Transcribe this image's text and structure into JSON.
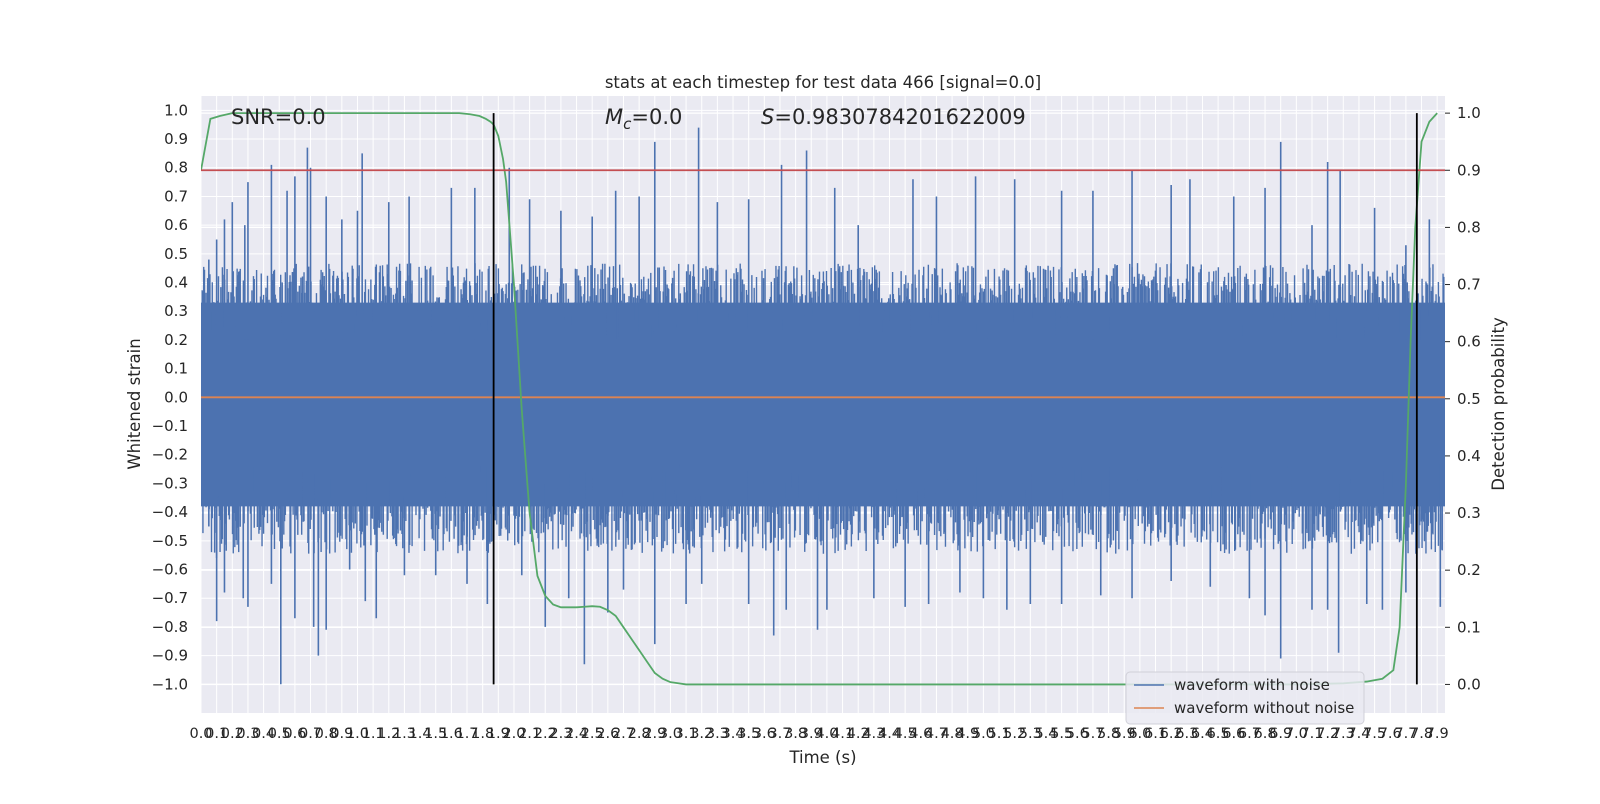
{
  "chart_data": {
    "type": "line",
    "title": "stats at each timestep for test data 466 [signal=0.0]",
    "xlabel": "Time (s)",
    "ylabel": "Whitened strain",
    "y2label": "Detection probability",
    "xlim": [
      0.0,
      7.95
    ],
    "ylim": [
      -1.1,
      1.05
    ],
    "y2lim": [
      -0.05,
      1.03
    ],
    "x_ticks": [
      0.0,
      0.1,
      0.2,
      0.3,
      0.4,
      0.5,
      0.6,
      0.7,
      0.8,
      0.9,
      1.0,
      1.1,
      1.2,
      1.3,
      1.4,
      1.5,
      1.6,
      1.7,
      1.8,
      1.9,
      2.0,
      2.1,
      2.2,
      2.3,
      2.4,
      2.5,
      2.6,
      2.7,
      2.8,
      2.9,
      3.0,
      3.1,
      3.2,
      3.3,
      3.4,
      3.5,
      3.6,
      3.7,
      3.8,
      3.9,
      4.0,
      4.1,
      4.2,
      4.3,
      4.4,
      4.5,
      4.6,
      4.7,
      4.8,
      4.9,
      5.0,
      5.1,
      5.2,
      5.3,
      5.4,
      5.5,
      5.6,
      5.7,
      5.8,
      5.9,
      6.0,
      6.1,
      6.2,
      6.3,
      6.4,
      6.5,
      6.6,
      6.7,
      6.8,
      6.9,
      7.0,
      7.1,
      7.2,
      7.3,
      7.4,
      7.5,
      7.6,
      7.7,
      7.8,
      7.9
    ],
    "y_ticks": [
      1.0,
      0.9,
      0.8,
      0.7,
      0.6,
      0.5,
      0.4,
      0.3,
      0.2,
      0.1,
      0.0,
      -0.1,
      -0.2,
      -0.3,
      -0.4,
      -0.5,
      -0.6,
      -0.7,
      -0.8,
      -0.9,
      -1.0
    ],
    "y_tick_labels": [
      "1.0",
      "0.9",
      "0.8",
      "0.7",
      "0.6",
      "0.5",
      "0.4",
      "0.3",
      "0.2",
      "0.1",
      "0.0",
      "−0.1",
      "−0.2",
      "−0.3",
      "−0.4",
      "−0.5",
      "−0.6",
      "−0.7",
      "−0.8",
      "−0.9",
      "−1.0"
    ],
    "y2_ticks": [
      1.0,
      0.9,
      0.8,
      0.7,
      0.6,
      0.5,
      0.4,
      0.3,
      0.2,
      0.1,
      0.0
    ],
    "y2_tick_labels": [
      "1.0",
      "0.9",
      "0.8",
      "0.7",
      "0.6",
      "0.5",
      "0.4",
      "0.3",
      "0.2",
      "0.1",
      "0.0"
    ],
    "grid": true,
    "legend_position": "bottom-right",
    "annotations": {
      "snr": "SNR=0.0",
      "mc_symbol": "M",
      "mc_sub": "c",
      "mc_value": "=0.0",
      "s_symbol": "S",
      "s_value": "=0.9830784201622009"
    },
    "series": [
      {
        "name": "waveform with noise",
        "color": "#4c72b0",
        "axis": "left",
        "style": "dense noise band",
        "band_upper_typical": 0.36,
        "band_lower_typical": -0.42,
        "peaks_up": [
          [
            0.05,
            0.48
          ],
          [
            0.1,
            0.55
          ],
          [
            0.15,
            0.62
          ],
          [
            0.2,
            0.68
          ],
          [
            0.28,
            0.6
          ],
          [
            0.3,
            0.75
          ],
          [
            0.45,
            0.81
          ],
          [
            0.55,
            0.72
          ],
          [
            0.6,
            0.77
          ],
          [
            0.68,
            0.87
          ],
          [
            0.7,
            0.8
          ],
          [
            0.8,
            0.7
          ],
          [
            0.9,
            0.62
          ],
          [
            1.0,
            0.65
          ],
          [
            1.03,
            0.85
          ],
          [
            1.2,
            0.68
          ],
          [
            1.33,
            0.7
          ],
          [
            1.6,
            0.73
          ],
          [
            1.75,
            0.73
          ],
          [
            1.97,
            0.8
          ],
          [
            2.1,
            0.69
          ],
          [
            2.3,
            0.65
          ],
          [
            2.5,
            0.63
          ],
          [
            2.65,
            0.72
          ],
          [
            2.8,
            0.7
          ],
          [
            2.9,
            0.89
          ],
          [
            3.18,
            0.94
          ],
          [
            3.3,
            0.68
          ],
          [
            3.5,
            0.69
          ],
          [
            3.71,
            0.81
          ],
          [
            3.87,
            0.86
          ],
          [
            4.05,
            0.73
          ],
          [
            4.2,
            0.6
          ],
          [
            4.55,
            0.76
          ],
          [
            4.7,
            0.7
          ],
          [
            4.95,
            0.77
          ],
          [
            5.2,
            0.76
          ],
          [
            5.5,
            0.72
          ],
          [
            5.7,
            0.72
          ],
          [
            5.95,
            0.79
          ],
          [
            6.2,
            0.74
          ],
          [
            6.32,
            0.76
          ],
          [
            6.6,
            0.7
          ],
          [
            6.8,
            0.73
          ],
          [
            6.9,
            0.89
          ],
          [
            7.1,
            0.6
          ],
          [
            7.2,
            0.82
          ],
          [
            7.28,
            0.79
          ],
          [
            7.5,
            0.66
          ],
          [
            7.7,
            0.53
          ],
          [
            7.85,
            0.62
          ]
        ],
        "peaks_down": [
          [
            0.05,
            -0.45
          ],
          [
            0.1,
            -0.56
          ],
          [
            0.1,
            -0.78
          ],
          [
            0.15,
            -0.68
          ],
          [
            0.27,
            -0.7
          ],
          [
            0.3,
            -0.73
          ],
          [
            0.45,
            -0.65
          ],
          [
            0.51,
            -1.0
          ],
          [
            0.6,
            -0.77
          ],
          [
            0.72,
            -0.8
          ],
          [
            0.75,
            -0.9
          ],
          [
            0.8,
            -0.81
          ],
          [
            0.95,
            -0.6
          ],
          [
            1.05,
            -0.71
          ],
          [
            1.12,
            -0.77
          ],
          [
            1.3,
            -0.62
          ],
          [
            1.5,
            -0.62
          ],
          [
            1.7,
            -0.65
          ],
          [
            1.83,
            -0.72
          ],
          [
            2.05,
            -0.62
          ],
          [
            2.2,
            -0.8
          ],
          [
            2.35,
            -0.7
          ],
          [
            2.45,
            -0.93
          ],
          [
            2.6,
            -0.75
          ],
          [
            2.7,
            -0.67
          ],
          [
            2.9,
            -0.86
          ],
          [
            3.1,
            -0.72
          ],
          [
            3.2,
            -0.65
          ],
          [
            3.5,
            -0.72
          ],
          [
            3.66,
            -0.83
          ],
          [
            3.74,
            -0.74
          ],
          [
            3.94,
            -0.81
          ],
          [
            4.0,
            -0.74
          ],
          [
            4.3,
            -0.7
          ],
          [
            4.5,
            -0.73
          ],
          [
            4.65,
            -0.72
          ],
          [
            4.85,
            -0.68
          ],
          [
            5.0,
            -0.7
          ],
          [
            5.15,
            -0.74
          ],
          [
            5.3,
            -0.72
          ],
          [
            5.5,
            -0.72
          ],
          [
            5.75,
            -0.69
          ],
          [
            5.95,
            -0.7
          ],
          [
            6.2,
            -0.64
          ],
          [
            6.45,
            -0.66
          ],
          [
            6.7,
            -0.7
          ],
          [
            6.8,
            -0.76
          ],
          [
            6.9,
            -0.91
          ],
          [
            7.1,
            -0.74
          ],
          [
            7.2,
            -0.74
          ],
          [
            7.27,
            -0.89
          ],
          [
            7.45,
            -0.72
          ],
          [
            7.55,
            -0.74
          ],
          [
            7.7,
            -0.68
          ],
          [
            7.92,
            -0.73
          ]
        ]
      },
      {
        "name": "waveform without noise",
        "color": "#dd8452",
        "axis": "left",
        "x": [
          0.0,
          7.95
        ],
        "y": [
          0.0,
          0.0
        ]
      },
      {
        "color": "#55a868",
        "axis": "right",
        "x": [
          0.0,
          0.06,
          0.12,
          0.2,
          0.4,
          0.8,
          1.2,
          1.5,
          1.65,
          1.72,
          1.78,
          1.82,
          1.85,
          1.87,
          1.9,
          1.93,
          1.95,
          2.0,
          2.05,
          2.1,
          2.15,
          2.2,
          2.25,
          2.3,
          2.35,
          2.4,
          2.45,
          2.5,
          2.55,
          2.6,
          2.65,
          2.7,
          2.75,
          2.8,
          2.85,
          2.9,
          2.95,
          3.0,
          3.05,
          3.1,
          3.2,
          3.5,
          4.0,
          5.0,
          6.0,
          7.0,
          7.3,
          7.45,
          7.55,
          7.62,
          7.66,
          7.7,
          7.73,
          7.76,
          7.8,
          7.85,
          7.9
        ],
        "y": [
          0.9,
          0.99,
          0.995,
          1.0,
          1.0,
          1.0,
          1.0,
          1.0,
          1.0,
          0.998,
          0.995,
          0.99,
          0.985,
          0.98,
          0.96,
          0.92,
          0.88,
          0.7,
          0.48,
          0.3,
          0.19,
          0.155,
          0.14,
          0.135,
          0.135,
          0.135,
          0.136,
          0.137,
          0.136,
          0.13,
          0.12,
          0.1,
          0.08,
          0.06,
          0.04,
          0.02,
          0.01,
          0.004,
          0.002,
          0.0,
          0.0,
          0.0,
          0.0,
          0.0,
          0.0,
          0.0,
          0.002,
          0.005,
          0.01,
          0.025,
          0.1,
          0.35,
          0.6,
          0.8,
          0.95,
          0.985,
          1.0
        ]
      },
      {
        "color": "#c44e52",
        "axis": "right",
        "x": [
          0.0,
          7.95
        ],
        "y": [
          0.9,
          0.9
        ]
      }
    ],
    "vertical_lines": [
      {
        "x": 1.87,
        "color": "#000000"
      },
      {
        "x": 7.77,
        "color": "#000000"
      }
    ]
  }
}
